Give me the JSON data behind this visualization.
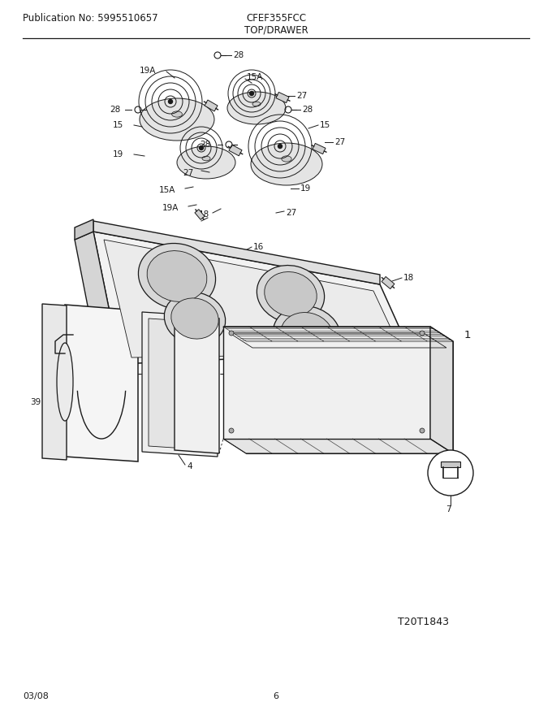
{
  "title": "TOP/DRAWER",
  "pub_no": "Publication No: 5995510657",
  "model": "CFEF355FCC",
  "date": "03/08",
  "page": "6",
  "diagram_id": "T20T1843",
  "bg_color": "#ffffff",
  "line_color": "#1a1a1a",
  "text_color": "#1a1a1a",
  "font_size_header": 8.5,
  "font_size_label": 7.5,
  "font_size_footer": 8
}
